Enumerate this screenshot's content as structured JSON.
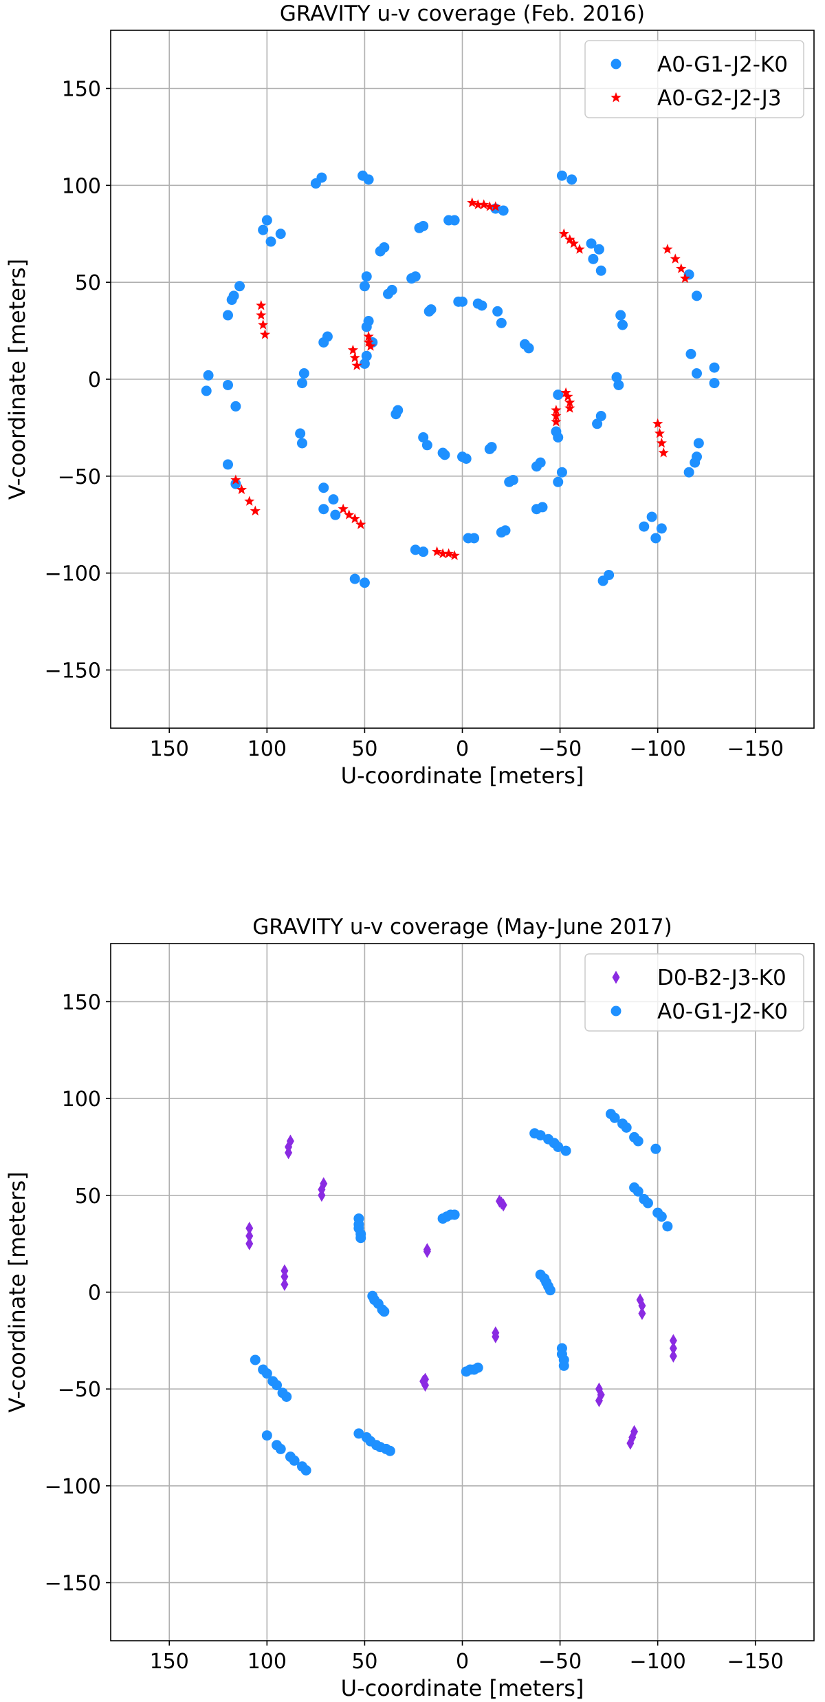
{
  "chart_data": [
    {
      "type": "scatter",
      "title": "GRAVITY u-v coverage (Feb. 2016)",
      "xlabel": "U-coordinate [meters]",
      "ylabel": "V-coordinate [meters]",
      "xlim": [
        180,
        -180
      ],
      "ylim": [
        -180,
        180
      ],
      "xticks": [
        150,
        100,
        50,
        0,
        -50,
        -100,
        -150
      ],
      "yticks": [
        -150,
        -100,
        -50,
        0,
        50,
        100,
        150
      ],
      "xtick_labels": [
        "150",
        "100",
        "50",
        "0",
        "−50",
        "−100",
        "−150"
      ],
      "ytick_labels": [
        "−150",
        "−100",
        "−50",
        "0",
        "50",
        "100",
        "150"
      ],
      "grid": true,
      "legend_position": "upper-right",
      "series": [
        {
          "name": "A0-G1-J2-K0",
          "color": "#1e90ff",
          "marker": "circle",
          "points": [
            [
              72,
              104
            ],
            [
              75,
              101
            ],
            [
              51,
              105
            ],
            [
              48,
              103
            ],
            [
              102,
              77
            ],
            [
              100,
              82
            ],
            [
              98,
              71
            ],
            [
              93,
              75
            ],
            [
              114,
              48
            ],
            [
              117,
              43
            ],
            [
              118,
              41
            ],
            [
              120,
              33
            ],
            [
              130,
              2
            ],
            [
              131,
              -6
            ],
            [
              120,
              -3
            ],
            [
              116,
              -14
            ],
            [
              120,
              -44
            ],
            [
              116,
              -54
            ],
            [
              71,
              -56
            ],
            [
              71,
              -67
            ],
            [
              66,
              -62
            ],
            [
              65,
              -70
            ],
            [
              55,
              -103
            ],
            [
              50,
              -105
            ],
            [
              -49,
              -53
            ],
            [
              -51,
              -48
            ],
            [
              -75,
              -101
            ],
            [
              -72,
              -104
            ],
            [
              -97,
              -71
            ],
            [
              -93,
              -76
            ],
            [
              -102,
              -77
            ],
            [
              -99,
              -82
            ],
            [
              -116,
              -48
            ],
            [
              -119,
              -43
            ],
            [
              -120,
              -40
            ],
            [
              -121,
              -33
            ],
            [
              -129,
              6
            ],
            [
              -129,
              -2
            ],
            [
              -120,
              3
            ],
            [
              -117,
              13
            ],
            [
              -116,
              54
            ],
            [
              -120,
              43
            ],
            [
              -51,
              105
            ],
            [
              -56,
              103
            ],
            [
              -66,
              70
            ],
            [
              -70,
              67
            ],
            [
              -67,
              62
            ],
            [
              -71,
              56
            ],
            [
              -81,
              33
            ],
            [
              -82,
              28
            ],
            [
              -80,
              -3
            ],
            [
              -79,
              1
            ],
            [
              -71,
              -19
            ],
            [
              -69,
              -23
            ],
            [
              -49,
              -8
            ],
            [
              -48,
              -27
            ],
            [
              -49,
              -30
            ],
            [
              49,
              53
            ],
            [
              50,
              48
            ],
            [
              48,
              30
            ],
            [
              49,
              27
            ],
            [
              46,
              19
            ],
            [
              49,
              12
            ],
            [
              50,
              8
            ],
            [
              71,
              19
            ],
            [
              69,
              22
            ],
            [
              81,
              3
            ],
            [
              82,
              -2
            ],
            [
              83,
              -28
            ],
            [
              82,
              -33
            ],
            [
              40,
              68
            ],
            [
              42,
              66
            ],
            [
              36,
              46
            ],
            [
              38,
              44
            ],
            [
              20,
              79
            ],
            [
              22,
              78
            ],
            [
              24,
              53
            ],
            [
              26,
              52
            ],
            [
              16,
              36
            ],
            [
              17,
              35
            ],
            [
              4,
              82
            ],
            [
              7,
              82
            ],
            [
              2,
              40
            ],
            [
              0,
              40
            ],
            [
              -8,
              39
            ],
            [
              -10,
              38
            ],
            [
              -18,
              35
            ],
            [
              -20,
              29
            ],
            [
              -17,
              88
            ],
            [
              -21,
              87
            ],
            [
              -32,
              18
            ],
            [
              -34,
              16
            ],
            [
              33,
              -16
            ],
            [
              34,
              -18
            ],
            [
              20,
              -30
            ],
            [
              18,
              -34
            ],
            [
              10,
              -38
            ],
            [
              9,
              -39
            ],
            [
              0,
              -40
            ],
            [
              -2,
              -41
            ],
            [
              -14,
              -36
            ],
            [
              -15,
              -35
            ],
            [
              -24,
              -53
            ],
            [
              -26,
              -52
            ],
            [
              -38,
              -45
            ],
            [
              -40,
              -43
            ],
            [
              -38,
              -67
            ],
            [
              -41,
              -66
            ],
            [
              -20,
              -79
            ],
            [
              -22,
              -78
            ],
            [
              -3,
              -82
            ],
            [
              -6,
              -82
            ],
            [
              24,
              -88
            ],
            [
              20,
              -89
            ]
          ]
        },
        {
          "name": "A0-G2-J2-J3",
          "color": "#ff0000",
          "marker": "star",
          "points": [
            [
              -5,
              91
            ],
            [
              -8,
              90
            ],
            [
              -11,
              90
            ],
            [
              -14,
              89
            ],
            [
              -17,
              89
            ],
            [
              -52,
              75
            ],
            [
              -55,
              72
            ],
            [
              -57,
              70
            ],
            [
              -60,
              67
            ],
            [
              -105,
              67
            ],
            [
              -109,
              62
            ],
            [
              -112,
              57
            ],
            [
              -114,
              52
            ],
            [
              103,
              38
            ],
            [
              103,
              33
            ],
            [
              102,
              28
            ],
            [
              101,
              23
            ],
            [
              56,
              15
            ],
            [
              55,
              11
            ],
            [
              54,
              7
            ],
            [
              48,
              22
            ],
            [
              48,
              19
            ],
            [
              47,
              17
            ],
            [
              -53,
              -7
            ],
            [
              -54,
              -9
            ],
            [
              -55,
              -12
            ],
            [
              -55,
              -15
            ],
            [
              -48,
              -16
            ],
            [
              -48,
              -19
            ],
            [
              -48,
              -22
            ],
            [
              -100,
              -23
            ],
            [
              -101,
              -28
            ],
            [
              -102,
              -33
            ],
            [
              -103,
              -38
            ],
            [
              116,
              -52
            ],
            [
              113,
              -57
            ],
            [
              109,
              -63
            ],
            [
              106,
              -68
            ],
            [
              61,
              -67
            ],
            [
              58,
              -70
            ],
            [
              55,
              -72
            ],
            [
              52,
              -75
            ],
            [
              13,
              -89
            ],
            [
              10,
              -90
            ],
            [
              7,
              -90
            ],
            [
              4,
              -91
            ]
          ]
        }
      ]
    },
    {
      "type": "scatter",
      "title": "GRAVITY u-v coverage (May-June 2017)",
      "xlabel": "U-coordinate [meters]",
      "ylabel": "V-coordinate [meters]",
      "xlim": [
        180,
        -180
      ],
      "ylim": [
        -180,
        180
      ],
      "xticks": [
        150,
        100,
        50,
        0,
        -50,
        -100,
        -150
      ],
      "yticks": [
        -150,
        -100,
        -50,
        0,
        50,
        100,
        150
      ],
      "xtick_labels": [
        "150",
        "100",
        "50",
        "0",
        "−50",
        "−100",
        "−150"
      ],
      "ytick_labels": [
        "−150",
        "−100",
        "−50",
        "0",
        "50",
        "100",
        "150"
      ],
      "grid": true,
      "legend_position": "upper-right",
      "series": [
        {
          "name": "D0-B2-J3-K0",
          "color": "#8a2be2",
          "marker": "diamond",
          "points": [
            [
              88,
              78
            ],
            [
              89,
              75
            ],
            [
              89,
              72
            ],
            [
              71,
              56
            ],
            [
              72,
              53
            ],
            [
              72,
              50
            ],
            [
              109,
              33
            ],
            [
              109,
              29
            ],
            [
              109,
              25
            ],
            [
              91,
              11
            ],
            [
              91,
              8
            ],
            [
              91,
              4
            ],
            [
              18,
              22
            ],
            [
              18,
              21
            ],
            [
              -19,
              47
            ],
            [
              -20,
              46
            ],
            [
              -21,
              45
            ],
            [
              -17,
              -21
            ],
            [
              -17,
              -23
            ],
            [
              19,
              -45
            ],
            [
              20,
              -46
            ],
            [
              19,
              -48
            ],
            [
              -70,
              -50
            ],
            [
              -71,
              -53
            ],
            [
              -70,
              -56
            ],
            [
              -88,
              -72
            ],
            [
              -87,
              -75
            ],
            [
              -86,
              -78
            ],
            [
              -91,
              -4
            ],
            [
              -92,
              -7
            ],
            [
              -92,
              -11
            ],
            [
              -108,
              -25
            ],
            [
              -108,
              -29
            ],
            [
              -108,
              -33
            ]
          ]
        },
        {
          "name": "A0-G1-J2-K0",
          "color": "#1e90ff",
          "marker": "circle",
          "points": [
            [
              -76,
              92
            ],
            [
              -78,
              90
            ],
            [
              -82,
              87
            ],
            [
              -84,
              85
            ],
            [
              -88,
              80
            ],
            [
              -90,
              78
            ],
            [
              -99,
              74
            ],
            [
              -37,
              82
            ],
            [
              -40,
              81
            ],
            [
              -44,
              79
            ],
            [
              -47,
              77
            ],
            [
              -49,
              75
            ],
            [
              -53,
              73
            ],
            [
              -88,
              54
            ],
            [
              -90,
              52
            ],
            [
              -93,
              48
            ],
            [
              -95,
              46
            ],
            [
              -100,
              41
            ],
            [
              -102,
              39
            ],
            [
              -105,
              34
            ],
            [
              53,
              38
            ],
            [
              53,
              35
            ],
            [
              53,
              33
            ],
            [
              52,
              30
            ],
            [
              52,
              28
            ],
            [
              10,
              38
            ],
            [
              8,
              39
            ],
            [
              6,
              40
            ],
            [
              4,
              40
            ],
            [
              -40,
              9
            ],
            [
              -42,
              7
            ],
            [
              -43,
              5
            ],
            [
              -44,
              3
            ],
            [
              -45,
              1
            ],
            [
              46,
              -2
            ],
            [
              45,
              -4
            ],
            [
              43,
              -6
            ],
            [
              41,
              -9
            ],
            [
              40,
              -10
            ],
            [
              -51,
              -29
            ],
            [
              -51,
              -32
            ],
            [
              -52,
              -35
            ],
            [
              -52,
              -38
            ],
            [
              -8,
              -39
            ],
            [
              -6,
              -40
            ],
            [
              -4,
              -40
            ],
            [
              -2,
              -41
            ],
            [
              106,
              -35
            ],
            [
              102,
              -40
            ],
            [
              100,
              -42
            ],
            [
              97,
              -46
            ],
            [
              95,
              -48
            ],
            [
              92,
              -52
            ],
            [
              90,
              -54
            ],
            [
              100,
              -74
            ],
            [
              95,
              -79
            ],
            [
              93,
              -81
            ],
            [
              88,
              -85
            ],
            [
              86,
              -87
            ],
            [
              82,
              -90
            ],
            [
              80,
              -92
            ],
            [
              53,
              -73
            ],
            [
              49,
              -75
            ],
            [
              47,
              -77
            ],
            [
              44,
              -79
            ],
            [
              42,
              -80
            ],
            [
              39,
              -81
            ],
            [
              37,
              -82
            ]
          ]
        }
      ]
    }
  ]
}
